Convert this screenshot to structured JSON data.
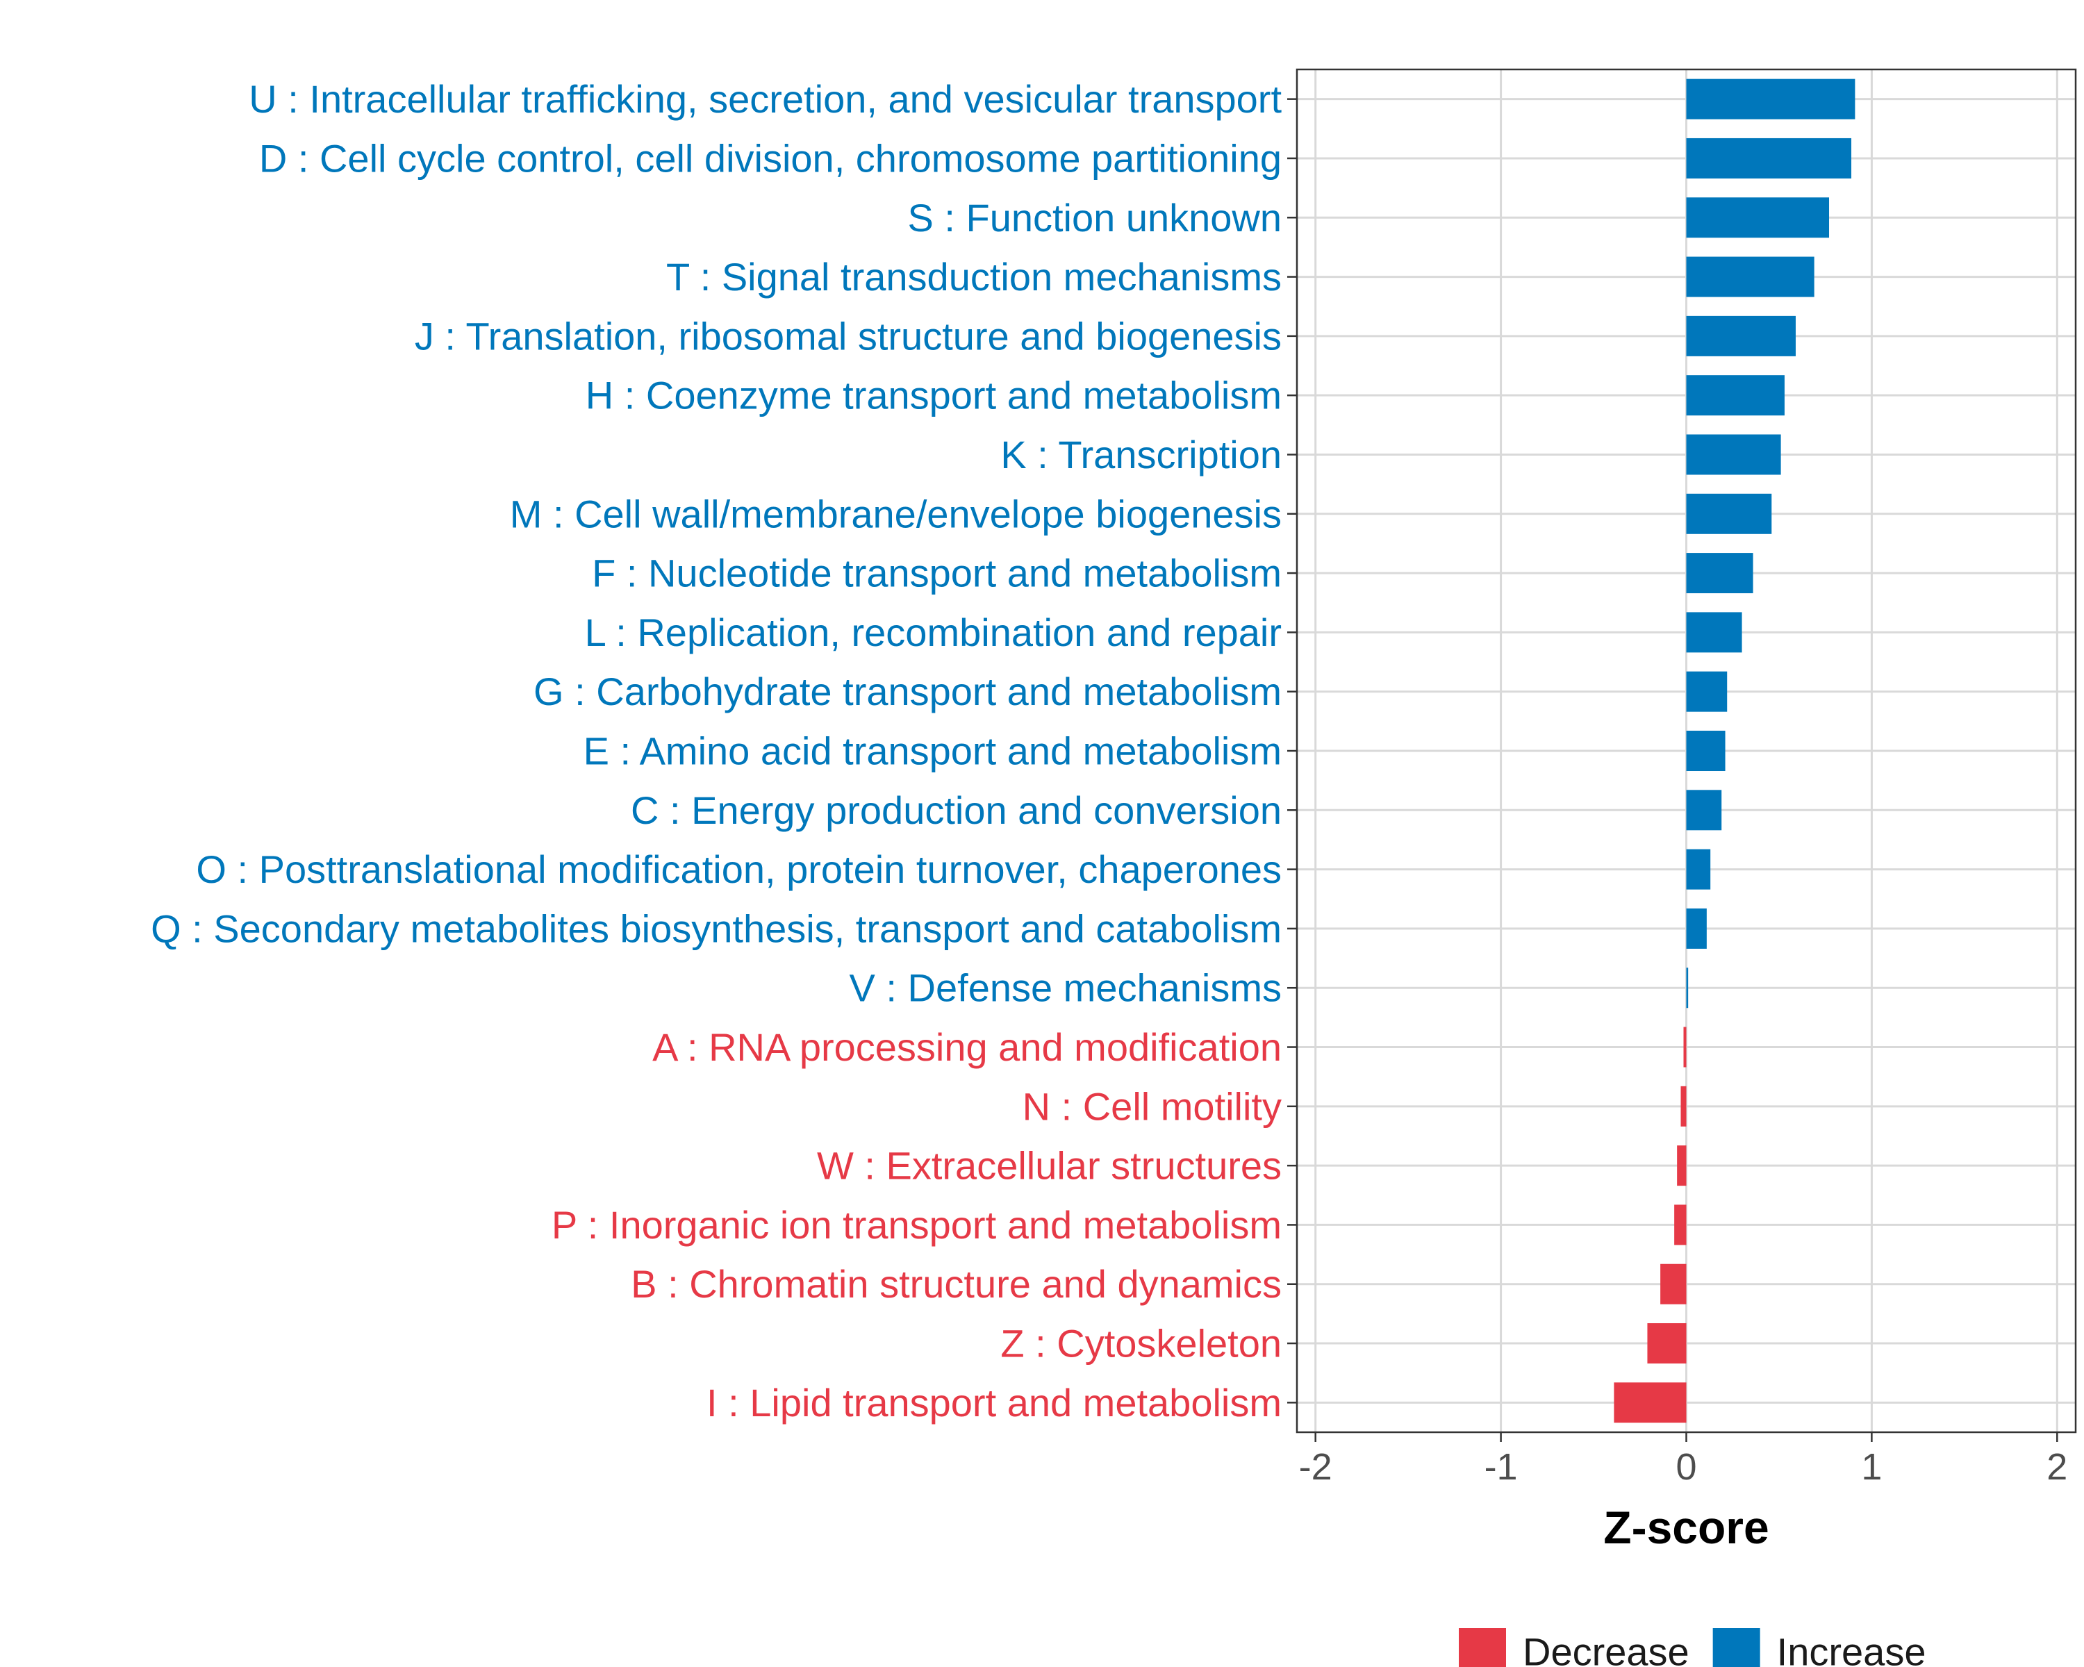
{
  "chart_data": {
    "type": "bar",
    "orientation": "horizontal",
    "title": "",
    "xlabel": "Z-score",
    "ylabel": "",
    "xlim": [
      -2.1,
      2.1
    ],
    "xticks": [
      -2,
      -1,
      0,
      1,
      2
    ],
    "xtick_labels": [
      "-2",
      "-1",
      "0",
      "1",
      "2"
    ],
    "grid": true,
    "legend_position": "bottom",
    "colors": {
      "Decrease": "#E63946",
      "Increase": "#0077BB"
    },
    "legend": [
      {
        "name": "Decrease",
        "color": "#E63946"
      },
      {
        "name": "Increase",
        "color": "#0077BB"
      }
    ],
    "categories": [
      "U : Intracellular trafficking, secretion, and vesicular transport",
      "D : Cell cycle control, cell division, chromosome partitioning",
      "S : Function unknown",
      "T : Signal transduction mechanisms",
      "J : Translation, ribosomal structure and biogenesis",
      "H : Coenzyme transport and metabolism",
      "K : Transcription",
      "M : Cell wall/membrane/envelope biogenesis",
      "F : Nucleotide transport and metabolism",
      "L : Replication, recombination and repair",
      "G : Carbohydrate transport and metabolism",
      "E : Amino acid transport and metabolism",
      "C : Energy production and conversion",
      "O : Posttranslational modification, protein turnover, chaperones",
      "Q : Secondary metabolites biosynthesis, transport and catabolism",
      "V : Defense mechanisms",
      "A : RNA processing and modification",
      "N : Cell motility",
      "W : Extracellular structures",
      "P : Inorganic ion transport and metabolism",
      "B : Chromatin structure and dynamics",
      "Z : Cytoskeleton",
      "I : Lipid transport and metabolism"
    ],
    "values": [
      0.91,
      0.89,
      0.77,
      0.69,
      0.59,
      0.53,
      0.51,
      0.46,
      0.36,
      0.3,
      0.22,
      0.21,
      0.19,
      0.13,
      0.11,
      0.01,
      -0.015,
      -0.03,
      -0.05,
      -0.065,
      -0.14,
      -0.21,
      -0.39
    ],
    "groups": [
      "Increase",
      "Increase",
      "Increase",
      "Increase",
      "Increase",
      "Increase",
      "Increase",
      "Increase",
      "Increase",
      "Increase",
      "Increase",
      "Increase",
      "Increase",
      "Increase",
      "Increase",
      "Increase",
      "Decrease",
      "Decrease",
      "Decrease",
      "Decrease",
      "Decrease",
      "Decrease",
      "Decrease"
    ]
  }
}
